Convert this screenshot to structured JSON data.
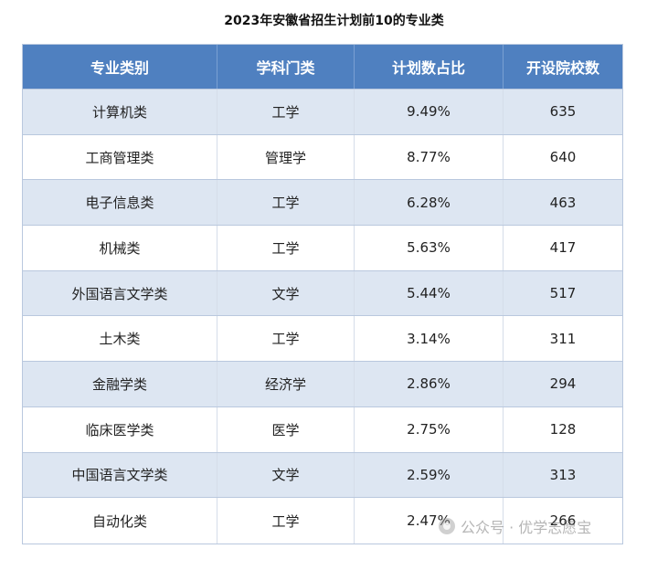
{
  "title": "2023年安徽省招生计划前10的专业类",
  "table": {
    "headers": [
      "专业类别",
      "学科门类",
      "计划数占比",
      "开设院校数"
    ],
    "rows": [
      [
        "计算机类",
        "工学",
        "9.49%",
        "635"
      ],
      [
        "工商管理类",
        "管理学",
        "8.77%",
        "640"
      ],
      [
        "电子信息类",
        "工学",
        "6.28%",
        "463"
      ],
      [
        "机械类",
        "工学",
        "5.63%",
        "417"
      ],
      [
        "外国语言文学类",
        "文学",
        "5.44%",
        "517"
      ],
      [
        "土木类",
        "工学",
        "3.14%",
        "311"
      ],
      [
        "金融学类",
        "经济学",
        "2.86%",
        "294"
      ],
      [
        "临床医学类",
        "医学",
        "2.75%",
        "128"
      ],
      [
        "中国语言文学类",
        "文学",
        "2.59%",
        "313"
      ],
      [
        "自动化类",
        "工学",
        "2.47%",
        "266"
      ]
    ]
  },
  "watermark": {
    "icon": "wechat-channel-icon",
    "text": "公众号 · 优学志愿宝"
  }
}
